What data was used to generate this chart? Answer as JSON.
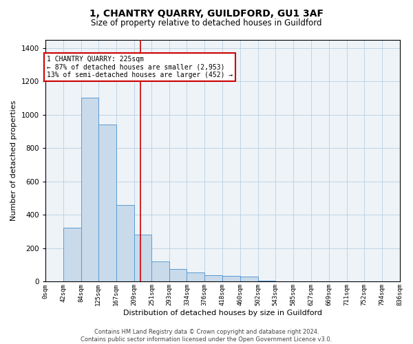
{
  "title": "1, CHANTRY QUARRY, GUILDFORD, GU1 3AF",
  "subtitle": "Size of property relative to detached houses in Guildford",
  "xlabel": "Distribution of detached houses by size in Guildford",
  "ylabel": "Number of detached properties",
  "bar_color": "#c9daea",
  "bar_edge_color": "#5b9bd5",
  "background_color": "#eef3f8",
  "grid_color": "#b8cfe0",
  "property_line_x": 225,
  "property_line_color": "#cc0000",
  "annotation_text": "1 CHANTRY QUARRY: 225sqm\n← 87% of detached houses are smaller (2,953)\n13% of semi-detached houses are larger (452) →",
  "annotation_box_color": "#ffffff",
  "annotation_box_edge": "#cc0000",
  "bin_edges": [
    0,
    42,
    84,
    125,
    167,
    209,
    251,
    293,
    334,
    376,
    418,
    460,
    502,
    543,
    585,
    627,
    669,
    711,
    752,
    794,
    836
  ],
  "bin_labels": [
    "0sqm",
    "42sqm",
    "84sqm",
    "125sqm",
    "167sqm",
    "209sqm",
    "251sqm",
    "293sqm",
    "334sqm",
    "376sqm",
    "418sqm",
    "460sqm",
    "502sqm",
    "543sqm",
    "585sqm",
    "627sqm",
    "669sqm",
    "711sqm",
    "752sqm",
    "794sqm",
    "836sqm"
  ],
  "bar_heights": [
    2,
    325,
    1100,
    940,
    460,
    280,
    120,
    75,
    55,
    40,
    35,
    30,
    5,
    2,
    2,
    0,
    0,
    2,
    0,
    2
  ],
  "ylim": [
    0,
    1450
  ],
  "yticks": [
    0,
    200,
    400,
    600,
    800,
    1000,
    1200,
    1400
  ],
  "footnote": "Contains HM Land Registry data © Crown copyright and database right 2024.\nContains public sector information licensed under the Open Government Licence v3.0."
}
